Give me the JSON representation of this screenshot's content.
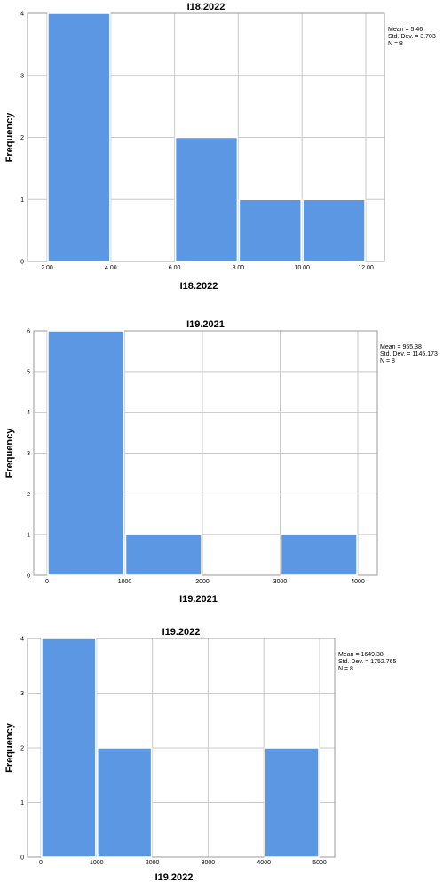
{
  "chart_data": [
    {
      "type": "bar",
      "title": "I18.2022",
      "xlabel": "I18.2022",
      "ylabel": "Frequency",
      "xticks": [
        "2.00",
        "4.00",
        "6.00",
        "8.00",
        "10.00",
        "12.00"
      ],
      "xlim": [
        2,
        12
      ],
      "ylim": [
        0,
        4
      ],
      "yticks": [
        "0",
        "1",
        "2",
        "3",
        "4"
      ],
      "bins": [
        {
          "from": 2,
          "to": 4,
          "count": 4
        },
        {
          "from": 4,
          "to": 6,
          "count": 0
        },
        {
          "from": 6,
          "to": 8,
          "count": 2
        },
        {
          "from": 8,
          "to": 10,
          "count": 1
        },
        {
          "from": 10,
          "to": 12,
          "count": 1
        }
      ],
      "stats": [
        "Mean = 5.46",
        "Std. Dev. = 3.703",
        "N = 8"
      ],
      "grid": true,
      "bar_color": "#5b97e3"
    },
    {
      "type": "bar",
      "title": "I19.2021",
      "xlabel": "I19.2021",
      "ylabel": "Frequency",
      "xticks": [
        "0",
        "1000",
        "2000",
        "3000",
        "4000"
      ],
      "xlim": [
        0,
        4000
      ],
      "ylim": [
        0,
        6
      ],
      "yticks": [
        "0",
        "1",
        "2",
        "3",
        "4",
        "5",
        "6"
      ],
      "bins": [
        {
          "from": 0,
          "to": 1000,
          "count": 6
        },
        {
          "from": 1000,
          "to": 2000,
          "count": 1
        },
        {
          "from": 2000,
          "to": 3000,
          "count": 0
        },
        {
          "from": 3000,
          "to": 4000,
          "count": 1
        }
      ],
      "stats": [
        "Mean = 955.38",
        "Std. Dev. = 1145.173",
        "N = 8"
      ],
      "grid": true,
      "bar_color": "#5b97e3"
    },
    {
      "type": "bar",
      "title": "I19.2022",
      "xlabel": "I19.2022",
      "ylabel": "Frequency",
      "xticks": [
        "0",
        "1000",
        "2000",
        "3000",
        "4000",
        "5000"
      ],
      "xlim": [
        0,
        5000
      ],
      "ylim": [
        0,
        4
      ],
      "yticks": [
        "0",
        "1",
        "2",
        "3",
        "4"
      ],
      "bins": [
        {
          "from": 0,
          "to": 1000,
          "count": 4
        },
        {
          "from": 1000,
          "to": 2000,
          "count": 2
        },
        {
          "from": 2000,
          "to": 3000,
          "count": 0
        },
        {
          "from": 3000,
          "to": 4000,
          "count": 0
        },
        {
          "from": 4000,
          "to": 5000,
          "count": 2
        }
      ],
      "stats": [
        "Mean = 1649.38",
        "Std. Dev. = 1752.765",
        "N = 8"
      ],
      "grid": true,
      "bar_color": "#5b97e3"
    }
  ]
}
